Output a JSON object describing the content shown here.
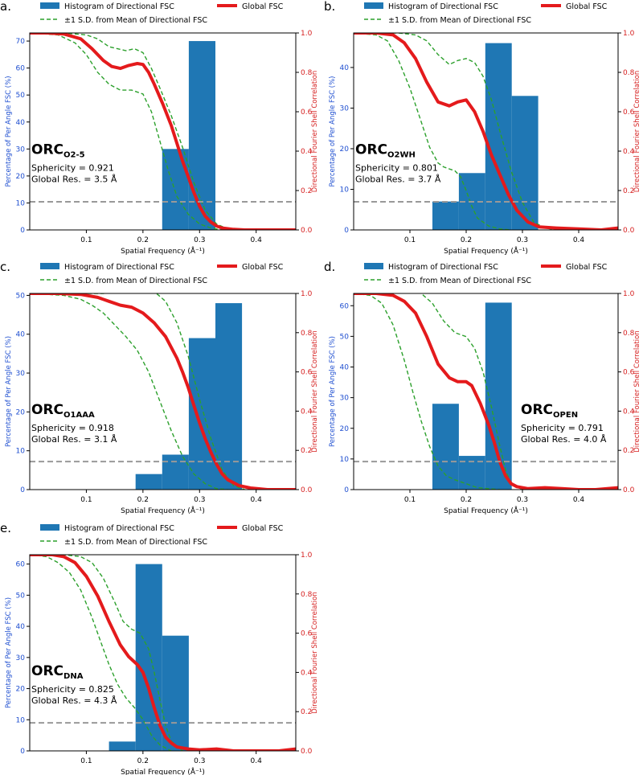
{
  "figure": {
    "legend": {
      "histogram_label": "Histogram of Directional FSC",
      "global_label": "Global FSC",
      "sd_label": "±1 S.D. from Mean of Directional FSC"
    },
    "axis_text": {
      "xlabel": "Spatial Frequency (Å⁻¹)",
      "ylabel_left": "Percentage of Per Angle FSC (%)",
      "ylabel_right": "Directional Fourier Shell Correlation",
      "sphericity_prefix": "Sphericity = ",
      "resolution_prefix": "Global Res. = "
    },
    "colors": {
      "histogram": "#1f77b4",
      "global_fsc": "#e41a1c",
      "sd": "#2ca02c",
      "threshold": "#999999",
      "left_axis_text": "#1f4fd0",
      "right_axis_text": "#d62020"
    }
  },
  "chart_data": [
    {
      "type": "bar",
      "panel": "a.",
      "name_main": "ORC",
      "name_sub": "O2-5",
      "sphericity": "0.921",
      "resolution": "3.5 Å",
      "xlim": [
        0,
        0.47
      ],
      "xticks": [
        0.1,
        0.2,
        0.3,
        0.4
      ],
      "ylim_left": [
        0,
        73
      ],
      "yticks_left": [
        0,
        10,
        20,
        30,
        40,
        50,
        60,
        70
      ],
      "ylim_right": [
        0,
        1
      ],
      "yticks_right": [
        0.0,
        0.2,
        0.4,
        0.6,
        0.8,
        1.0
      ],
      "histogram": {
        "bin_edges": [
          0.234,
          0.281,
          0.328
        ],
        "counts": [
          30,
          70
        ]
      },
      "threshold": 0.143,
      "global_fsc": {
        "x": [
          0,
          0.03,
          0.06,
          0.09,
          0.11,
          0.13,
          0.145,
          0.16,
          0.175,
          0.19,
          0.2,
          0.21,
          0.22,
          0.235,
          0.25,
          0.26,
          0.27,
          0.28,
          0.29,
          0.3,
          0.31,
          0.32,
          0.33,
          0.34,
          0.36,
          0.38,
          0.4,
          0.43,
          0.47
        ],
        "y": [
          1.0,
          1.0,
          0.995,
          0.97,
          0.92,
          0.86,
          0.83,
          0.82,
          0.835,
          0.845,
          0.84,
          0.8,
          0.74,
          0.64,
          0.53,
          0.44,
          0.35,
          0.27,
          0.19,
          0.12,
          0.07,
          0.04,
          0.02,
          0.01,
          0.003,
          0.0,
          0.0,
          0.0,
          0.0
        ]
      },
      "sd_upper": {
        "x": [
          0,
          0.06,
          0.1,
          0.12,
          0.14,
          0.155,
          0.17,
          0.185,
          0.2,
          0.215,
          0.23,
          0.25,
          0.27,
          0.29,
          0.31,
          0.33,
          0.35,
          0.38
        ],
        "y": [
          1.0,
          1.0,
          0.99,
          0.97,
          0.93,
          0.92,
          0.91,
          0.92,
          0.9,
          0.82,
          0.72,
          0.58,
          0.42,
          0.24,
          0.1,
          0.03,
          0.005,
          0.0
        ]
      },
      "sd_lower": {
        "x": [
          0,
          0.05,
          0.08,
          0.1,
          0.12,
          0.14,
          0.16,
          0.18,
          0.2,
          0.215,
          0.23,
          0.245,
          0.26,
          0.28,
          0.3,
          0.32,
          0.34
        ],
        "y": [
          1.0,
          0.99,
          0.95,
          0.89,
          0.8,
          0.74,
          0.71,
          0.71,
          0.69,
          0.6,
          0.45,
          0.3,
          0.17,
          0.08,
          0.03,
          0.01,
          0.0
        ]
      },
      "label_pos": "left"
    },
    {
      "type": "bar",
      "panel": "b.",
      "name_main": "ORC",
      "name_sub": "O2WH",
      "sphericity": "0.801",
      "resolution": "3.7 Å",
      "xlim": [
        0,
        0.47
      ],
      "xticks": [
        0.1,
        0.2,
        0.3,
        0.4
      ],
      "ylim_left": [
        0,
        48.5
      ],
      "yticks_left": [
        0,
        10,
        20,
        30,
        40
      ],
      "ylim_right": [
        0,
        1
      ],
      "yticks_right": [
        0.0,
        0.2,
        0.4,
        0.6,
        0.8,
        1.0
      ],
      "histogram": {
        "bin_edges": [
          0.14,
          0.187,
          0.234,
          0.281,
          0.328
        ],
        "counts": [
          7,
          14,
          46,
          33
        ]
      },
      "threshold": 0.143,
      "global_fsc": {
        "x": [
          0,
          0.04,
          0.07,
          0.09,
          0.11,
          0.13,
          0.15,
          0.17,
          0.185,
          0.2,
          0.215,
          0.23,
          0.245,
          0.26,
          0.275,
          0.29,
          0.31,
          0.33,
          0.36,
          0.4,
          0.44,
          0.47
        ],
        "y": [
          1.0,
          1.0,
          0.99,
          0.95,
          0.87,
          0.75,
          0.65,
          0.63,
          0.65,
          0.66,
          0.6,
          0.5,
          0.38,
          0.28,
          0.18,
          0.1,
          0.04,
          0.015,
          0.01,
          0.005,
          0.0,
          0.01
        ]
      },
      "sd_upper": {
        "x": [
          0,
          0.08,
          0.11,
          0.13,
          0.15,
          0.17,
          0.185,
          0.2,
          0.215,
          0.23,
          0.245,
          0.26,
          0.28,
          0.3,
          0.32,
          0.34,
          0.36
        ],
        "y": [
          1.0,
          1.0,
          0.99,
          0.96,
          0.89,
          0.84,
          0.86,
          0.87,
          0.85,
          0.78,
          0.66,
          0.5,
          0.3,
          0.14,
          0.04,
          0.01,
          0.0
        ]
      },
      "sd_lower": {
        "x": [
          0,
          0.04,
          0.06,
          0.08,
          0.1,
          0.12,
          0.135,
          0.15,
          0.16,
          0.17,
          0.18,
          0.19,
          0.2,
          0.21,
          0.22,
          0.24,
          0.26,
          0.28
        ],
        "y": [
          1.0,
          0.99,
          0.96,
          0.86,
          0.72,
          0.55,
          0.42,
          0.34,
          0.32,
          0.31,
          0.3,
          0.27,
          0.2,
          0.12,
          0.06,
          0.02,
          0.005,
          0.0
        ]
      },
      "label_pos": "left"
    },
    {
      "type": "bar",
      "panel": "c.",
      "name_main": "ORC",
      "name_sub": "O1AAA",
      "sphericity": "0.918",
      "resolution": "3.1 Å",
      "xlim": [
        0,
        0.47
      ],
      "xticks": [
        0.1,
        0.2,
        0.3,
        0.4
      ],
      "ylim_left": [
        0,
        50.5
      ],
      "yticks_left": [
        0,
        10,
        20,
        30,
        40,
        50
      ],
      "ylim_right": [
        0,
        1
      ],
      "yticks_right": [
        0.0,
        0.2,
        0.4,
        0.6,
        0.8,
        1.0
      ],
      "histogram": {
        "bin_edges": [
          0.187,
          0.234,
          0.281,
          0.328,
          0.375
        ],
        "counts": [
          4,
          9,
          39,
          48
        ]
      },
      "threshold": 0.143,
      "global_fsc": {
        "x": [
          0,
          0.05,
          0.09,
          0.12,
          0.14,
          0.16,
          0.18,
          0.2,
          0.22,
          0.24,
          0.26,
          0.27,
          0.28,
          0.29,
          0.3,
          0.31,
          0.32,
          0.33,
          0.34,
          0.35,
          0.37,
          0.39,
          0.42,
          0.47
        ],
        "y": [
          1.0,
          1.0,
          0.995,
          0.98,
          0.96,
          0.94,
          0.93,
          0.9,
          0.85,
          0.78,
          0.67,
          0.6,
          0.52,
          0.43,
          0.34,
          0.26,
          0.19,
          0.13,
          0.08,
          0.05,
          0.02,
          0.008,
          0.0,
          0.0
        ]
      },
      "sd_upper": {
        "x": [
          0,
          0.1,
          0.13,
          0.16,
          0.18,
          0.2,
          0.21,
          0.22,
          0.24,
          0.26,
          0.28,
          0.3,
          0.32,
          0.34,
          0.36,
          0.38
        ],
        "y": [
          1.0,
          1.0,
          1.0,
          1.01,
          1.02,
          1.02,
          1.02,
          1.01,
          0.96,
          0.85,
          0.68,
          0.46,
          0.26,
          0.1,
          0.02,
          0.0
        ]
      },
      "sd_lower": {
        "x": [
          0,
          0.06,
          0.09,
          0.11,
          0.13,
          0.15,
          0.17,
          0.19,
          0.21,
          0.23,
          0.25,
          0.27,
          0.29,
          0.31,
          0.33,
          0.35
        ],
        "y": [
          1.0,
          0.99,
          0.97,
          0.94,
          0.9,
          0.84,
          0.78,
          0.71,
          0.6,
          0.45,
          0.3,
          0.17,
          0.08,
          0.03,
          0.005,
          0.0
        ]
      },
      "label_pos": "left"
    },
    {
      "type": "bar",
      "panel": "d.",
      "name_main": "ORC",
      "name_sub": "OPEN",
      "sphericity": "0.791",
      "resolution": "4.0 Å",
      "xlim": [
        0,
        0.47
      ],
      "xticks": [
        0.1,
        0.2,
        0.3,
        0.4
      ],
      "ylim_left": [
        0,
        64
      ],
      "yticks_left": [
        0,
        10,
        20,
        30,
        40,
        50,
        60
      ],
      "ylim_right": [
        0,
        1
      ],
      "yticks_right": [
        0.0,
        0.2,
        0.4,
        0.6,
        0.8,
        1.0
      ],
      "histogram": {
        "bin_edges": [
          0.14,
          0.187,
          0.234,
          0.281
        ],
        "counts": [
          28,
          11,
          61
        ]
      },
      "threshold": 0.143,
      "global_fsc": {
        "x": [
          0,
          0.04,
          0.07,
          0.09,
          0.11,
          0.13,
          0.15,
          0.17,
          0.185,
          0.2,
          0.21,
          0.225,
          0.24,
          0.25,
          0.26,
          0.27,
          0.28,
          0.29,
          0.31,
          0.34,
          0.37,
          0.4,
          0.43,
          0.47
        ],
        "y": [
          1.0,
          1.0,
          0.99,
          0.96,
          0.9,
          0.78,
          0.64,
          0.57,
          0.55,
          0.55,
          0.53,
          0.44,
          0.33,
          0.24,
          0.14,
          0.07,
          0.03,
          0.015,
          0.005,
          0.01,
          0.005,
          0.0,
          0.0,
          0.01
        ]
      },
      "sd_upper": {
        "x": [
          0,
          0.07,
          0.1,
          0.12,
          0.14,
          0.16,
          0.18,
          0.2,
          0.215,
          0.23,
          0.245,
          0.26,
          0.27,
          0.28,
          0.3
        ],
        "y": [
          1.0,
          1.0,
          1.02,
          1.0,
          0.95,
          0.86,
          0.8,
          0.78,
          0.72,
          0.6,
          0.42,
          0.22,
          0.1,
          0.03,
          0.0
        ]
      },
      "sd_lower": {
        "x": [
          0,
          0.03,
          0.05,
          0.07,
          0.09,
          0.105,
          0.12,
          0.135,
          0.15,
          0.165,
          0.18,
          0.2,
          0.22,
          0.24,
          0.26
        ],
        "y": [
          1.0,
          0.99,
          0.95,
          0.84,
          0.66,
          0.5,
          0.35,
          0.22,
          0.12,
          0.07,
          0.05,
          0.03,
          0.01,
          0.005,
          0.0
        ]
      },
      "label_pos": "right"
    },
    {
      "type": "bar",
      "panel": "e.",
      "name_main": "ORC",
      "name_sub": "DNA",
      "sphericity": "0.825",
      "resolution": "4.3 Å",
      "xlim": [
        0,
        0.47
      ],
      "xticks": [
        0.1,
        0.2,
        0.3,
        0.4
      ],
      "ylim_left": [
        0,
        63
      ],
      "yticks_left": [
        0,
        10,
        20,
        30,
        40,
        50,
        60
      ],
      "ylim_right": [
        0,
        1
      ],
      "yticks_right": [
        0.0,
        0.2,
        0.4,
        0.6,
        0.8,
        1.0
      ],
      "histogram": {
        "bin_edges": [
          0.14,
          0.187,
          0.234,
          0.281
        ],
        "counts": [
          3,
          60,
          37
        ]
      },
      "threshold": 0.143,
      "global_fsc": {
        "x": [
          0,
          0.04,
          0.06,
          0.08,
          0.1,
          0.12,
          0.14,
          0.16,
          0.175,
          0.19,
          0.2,
          0.21,
          0.22,
          0.23,
          0.24,
          0.25,
          0.26,
          0.28,
          0.3,
          0.33,
          0.36,
          0.4,
          0.44,
          0.47
        ],
        "y": [
          1.0,
          1.0,
          0.99,
          0.96,
          0.89,
          0.79,
          0.66,
          0.54,
          0.48,
          0.44,
          0.4,
          0.32,
          0.22,
          0.13,
          0.07,
          0.04,
          0.02,
          0.01,
          0.005,
          0.01,
          0.0,
          0.0,
          0.0,
          0.01
        ]
      },
      "sd_upper": {
        "x": [
          0,
          0.06,
          0.09,
          0.11,
          0.13,
          0.15,
          0.165,
          0.18,
          0.195,
          0.21,
          0.22,
          0.23,
          0.24,
          0.25,
          0.27
        ],
        "y": [
          1.0,
          1.0,
          0.99,
          0.96,
          0.88,
          0.76,
          0.66,
          0.62,
          0.6,
          0.52,
          0.4,
          0.26,
          0.13,
          0.05,
          0.0
        ]
      },
      "sd_lower": {
        "x": [
          0,
          0.03,
          0.05,
          0.07,
          0.09,
          0.11,
          0.125,
          0.14,
          0.155,
          0.17,
          0.185,
          0.2,
          0.215,
          0.23,
          0.25
        ],
        "y": [
          1.0,
          0.99,
          0.96,
          0.91,
          0.82,
          0.68,
          0.56,
          0.44,
          0.34,
          0.27,
          0.22,
          0.16,
          0.08,
          0.03,
          0.0
        ]
      },
      "label_pos": "left"
    }
  ]
}
